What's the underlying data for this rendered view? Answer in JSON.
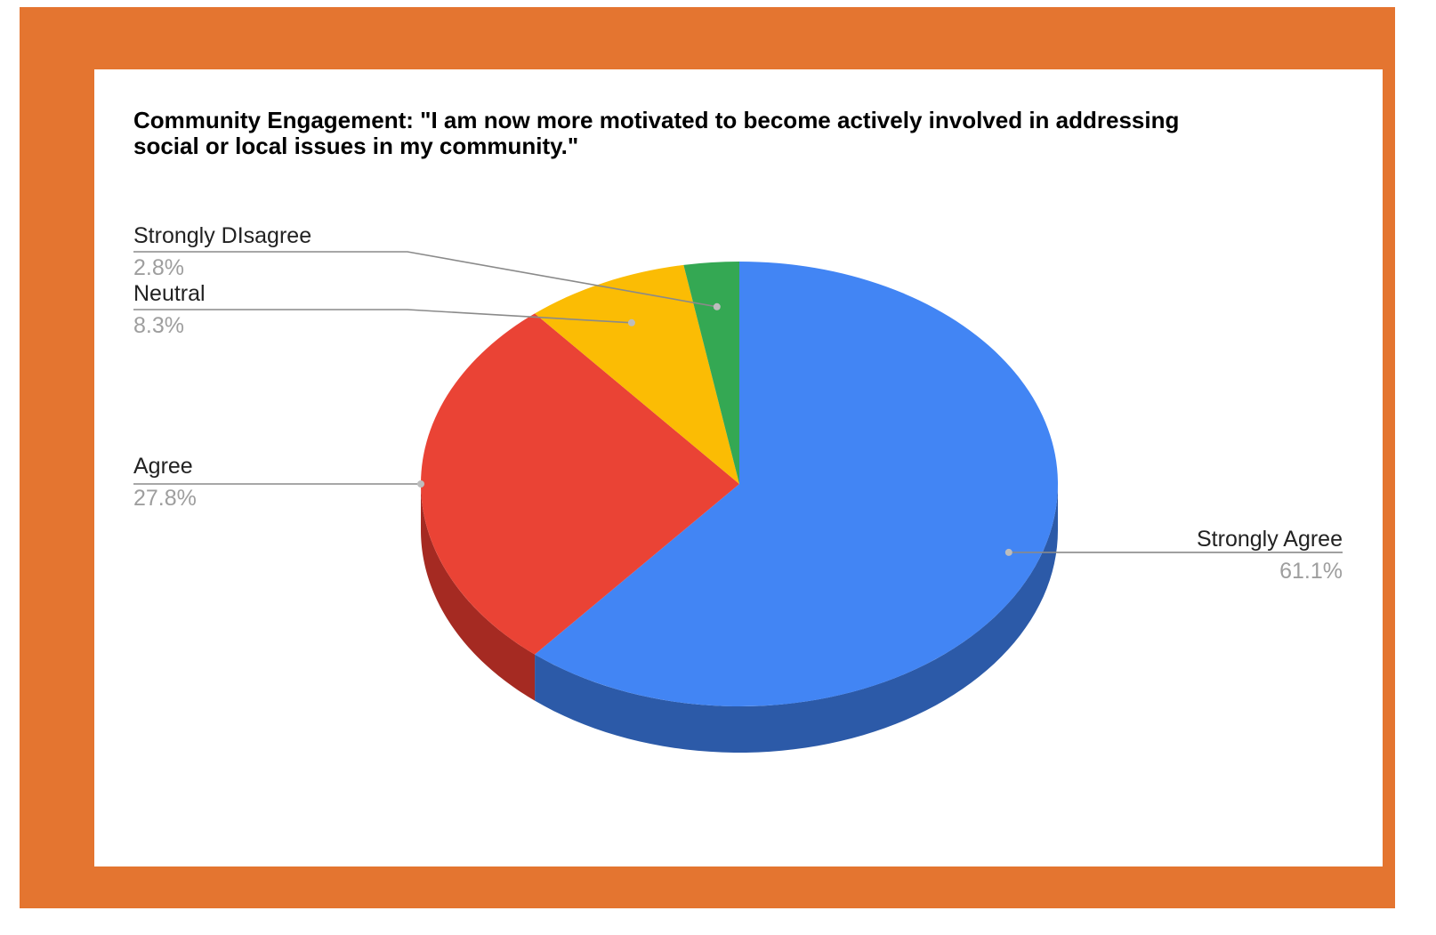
{
  "frame_color": "#e47530",
  "chart_data": {
    "type": "pie",
    "style": "3d",
    "title": [
      "Community Engagement: \"I am now more motivated to become actively involved in addressing",
      "social or local issues in my community.\""
    ],
    "slices": [
      {
        "label": "Strongly Agree",
        "value": 61.1,
        "value_label": "61.1%",
        "color": "#4285f4",
        "side_color": "#2c5aa8"
      },
      {
        "label": "Agree",
        "value": 27.8,
        "value_label": "27.8%",
        "color": "#ea4335",
        "side_color": "#a52a22"
      },
      {
        "label": "Neutral",
        "value": 8.3,
        "value_label": "8.3%",
        "color": "#fbbc04",
        "side_color": "#b88a02"
      },
      {
        "label": "Strongly DIsagree",
        "value": 2.8,
        "value_label": "2.8%",
        "color": "#34a853",
        "side_color": "#23753a"
      }
    ],
    "start": "12 o'clock",
    "direction": "clockwise",
    "legend": "none (labels with leader lines)"
  }
}
